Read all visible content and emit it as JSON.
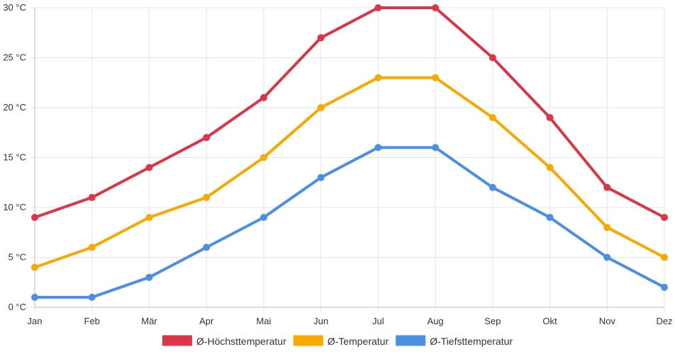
{
  "chart_data": {
    "type": "line",
    "title": "",
    "xlabel": "",
    "ylabel": "",
    "categories": [
      "Jan",
      "Feb",
      "Mär",
      "Apr",
      "Mai",
      "Jun",
      "Jul",
      "Aug",
      "Sep",
      "Okt",
      "Nov",
      "Dez"
    ],
    "ylim": [
      0,
      30
    ],
    "yticks": [
      0,
      5,
      10,
      15,
      20,
      25,
      30
    ],
    "ytick_labels": [
      "0 °C",
      "5 °C",
      "10 °C",
      "15 °C",
      "20 °C",
      "25 °C",
      "30 °C"
    ],
    "grid": true,
    "legend_position": "bottom",
    "series": [
      {
        "name": "Ø-Höchsttemperatur",
        "color": "#dc3545",
        "values": [
          9,
          11,
          14,
          17,
          21,
          27,
          30,
          30,
          25,
          19,
          12,
          9
        ]
      },
      {
        "name": "Ø-Temperatur",
        "color": "#f9a800",
        "values": [
          4,
          6,
          9,
          11,
          15,
          20,
          23,
          23,
          19,
          14,
          8,
          5
        ]
      },
      {
        "name": "Ø-Tiefsttemperatur",
        "color": "#4a90e2",
        "values": [
          1,
          1,
          3,
          6,
          9,
          13,
          16,
          16,
          12,
          9,
          5,
          2
        ]
      }
    ]
  }
}
